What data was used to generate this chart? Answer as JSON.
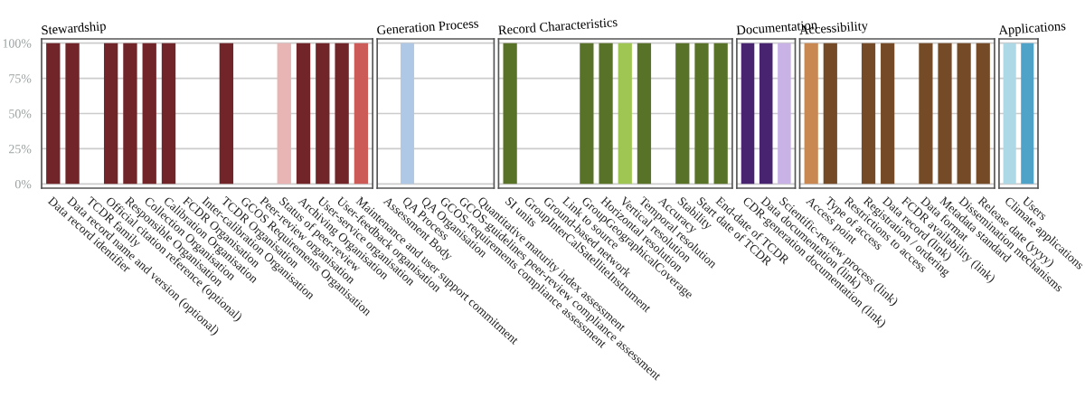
{
  "chart_data": [
    {
      "type": "bar",
      "title": "Stewardship",
      "categories": [
        "Data record identifier",
        "Data record name and version (optional)",
        "TCDR family",
        "Official citation reference (optional)",
        "Responsible Organisation",
        "Collection Organisation",
        "Calibration Organisation",
        "FCDR Organisation",
        "Inter-calibration Organisation",
        "TCDR Organisation",
        "GCOS Requirements Organisation",
        "Peer-review organisation",
        "Status of peer-review",
        "Archiving Organisation",
        "User-service organisation",
        "User-feedback organisation",
        "Maintenance and user support commitment"
      ],
      "values": [
        100,
        100,
        0,
        100,
        100,
        100,
        100,
        0,
        0,
        100,
        0,
        0,
        100,
        100,
        100,
        100,
        100
      ],
      "colors": [
        "#722529",
        "#722529",
        "#722529",
        "#722529",
        "#722529",
        "#722529",
        "#722529",
        "#722529",
        "#722529",
        "#722529",
        "#722529",
        "#722529",
        "#e8b4b4",
        "#722529",
        "#722529",
        "#722529",
        "#cc5a57"
      ],
      "ylim": [
        -3,
        103
      ],
      "yticks": [
        {
          "value": 0,
          "label": "0%"
        },
        {
          "value": 25,
          "label": "25%"
        },
        {
          "value": 50,
          "label": "50%"
        },
        {
          "value": 75,
          "label": "75%"
        },
        {
          "value": 100,
          "label": "100%"
        }
      ],
      "grid": "y"
    },
    {
      "type": "bar",
      "title": "Generation Process",
      "categories": [
        "Assessment Body",
        "QA Process",
        "QA Organisation",
        "GCOS-requirements compliance assessment",
        "GCOS-guidelines peer-review compliance assessment",
        "Quantitative maturity index assessment"
      ],
      "values": [
        0,
        100,
        0,
        0,
        0,
        0
      ],
      "colors": [
        "#aec8e6",
        "#aec8e6",
        "#aec8e6",
        "#aec8e6",
        "#aec8e6",
        "#aec8e6"
      ],
      "ylim": [
        -3,
        103
      ],
      "yticks": [
        0,
        25,
        50,
        75,
        100
      ],
      "grid": "y",
      "tick_labels": "x"
    },
    {
      "type": "bar",
      "title": "Record Characteristics",
      "categories": [
        "SI units",
        "GroupInterCalSatelliteInstrument",
        "Ground-based network",
        "Link to source",
        "GroupGeographicalCoverage",
        "Horizontal resolution",
        "Vertical resolution",
        "Temporal resolution",
        "Accuracy",
        "Stability",
        "Start date of TCDR",
        "End-date of TCDR"
      ],
      "values": [
        100,
        0,
        0,
        0,
        100,
        100,
        100,
        100,
        0,
        100,
        100,
        100
      ],
      "colors": [
        "#587227",
        "#587227",
        "#587227",
        "#587227",
        "#587227",
        "#587227",
        "#9fc653",
        "#587227",
        "#587227",
        "#587227",
        "#587227",
        "#587227"
      ],
      "ylim": [
        -3,
        103
      ],
      "yticks": [
        0,
        25,
        50,
        75,
        100
      ],
      "grid": "y",
      "tick_labels": "x"
    },
    {
      "type": "bar",
      "title": "Documentation",
      "categories": [
        "CDR-generation documentation (link)",
        "Data documentation (link)",
        "Scientific-review process (link)"
      ],
      "values": [
        100,
        100,
        100
      ],
      "colors": [
        "#482470",
        "#482470",
        "#c9b3e6"
      ],
      "ylim": [
        -3,
        103
      ],
      "yticks": [
        0,
        25,
        50,
        75,
        100
      ],
      "grid": "y",
      "tick_labels": "x"
    },
    {
      "type": "bar",
      "title": "Accessibility",
      "categories": [
        "Access point",
        "Type of access",
        "Restrictions to access",
        "Registration / ordering",
        "Data record (link)",
        "FCDR availability (link)",
        "Data format",
        "Metadata standard",
        "Dissemination mechanisms",
        "Release date (yyyy)"
      ],
      "values": [
        100,
        100,
        0,
        100,
        100,
        0,
        100,
        100,
        100,
        100
      ],
      "colors": [
        "#c98751",
        "#754a26",
        "#754a26",
        "#754a26",
        "#754a26",
        "#754a26",
        "#754a26",
        "#754a26",
        "#754a26",
        "#754a26"
      ],
      "ylim": [
        -3,
        103
      ],
      "yticks": [
        0,
        25,
        50,
        75,
        100
      ],
      "grid": "y",
      "tick_labels": "x"
    },
    {
      "type": "bar",
      "title": "Applications",
      "categories": [
        "Climate applications",
        "Users"
      ],
      "values": [
        100,
        100
      ],
      "colors": [
        "#add8e6",
        "#4fa3c9"
      ],
      "ylim": [
        -3,
        103
      ],
      "yticks": [
        0,
        25,
        50,
        75,
        100
      ],
      "grid": "y",
      "tick_labels": "x"
    }
  ]
}
